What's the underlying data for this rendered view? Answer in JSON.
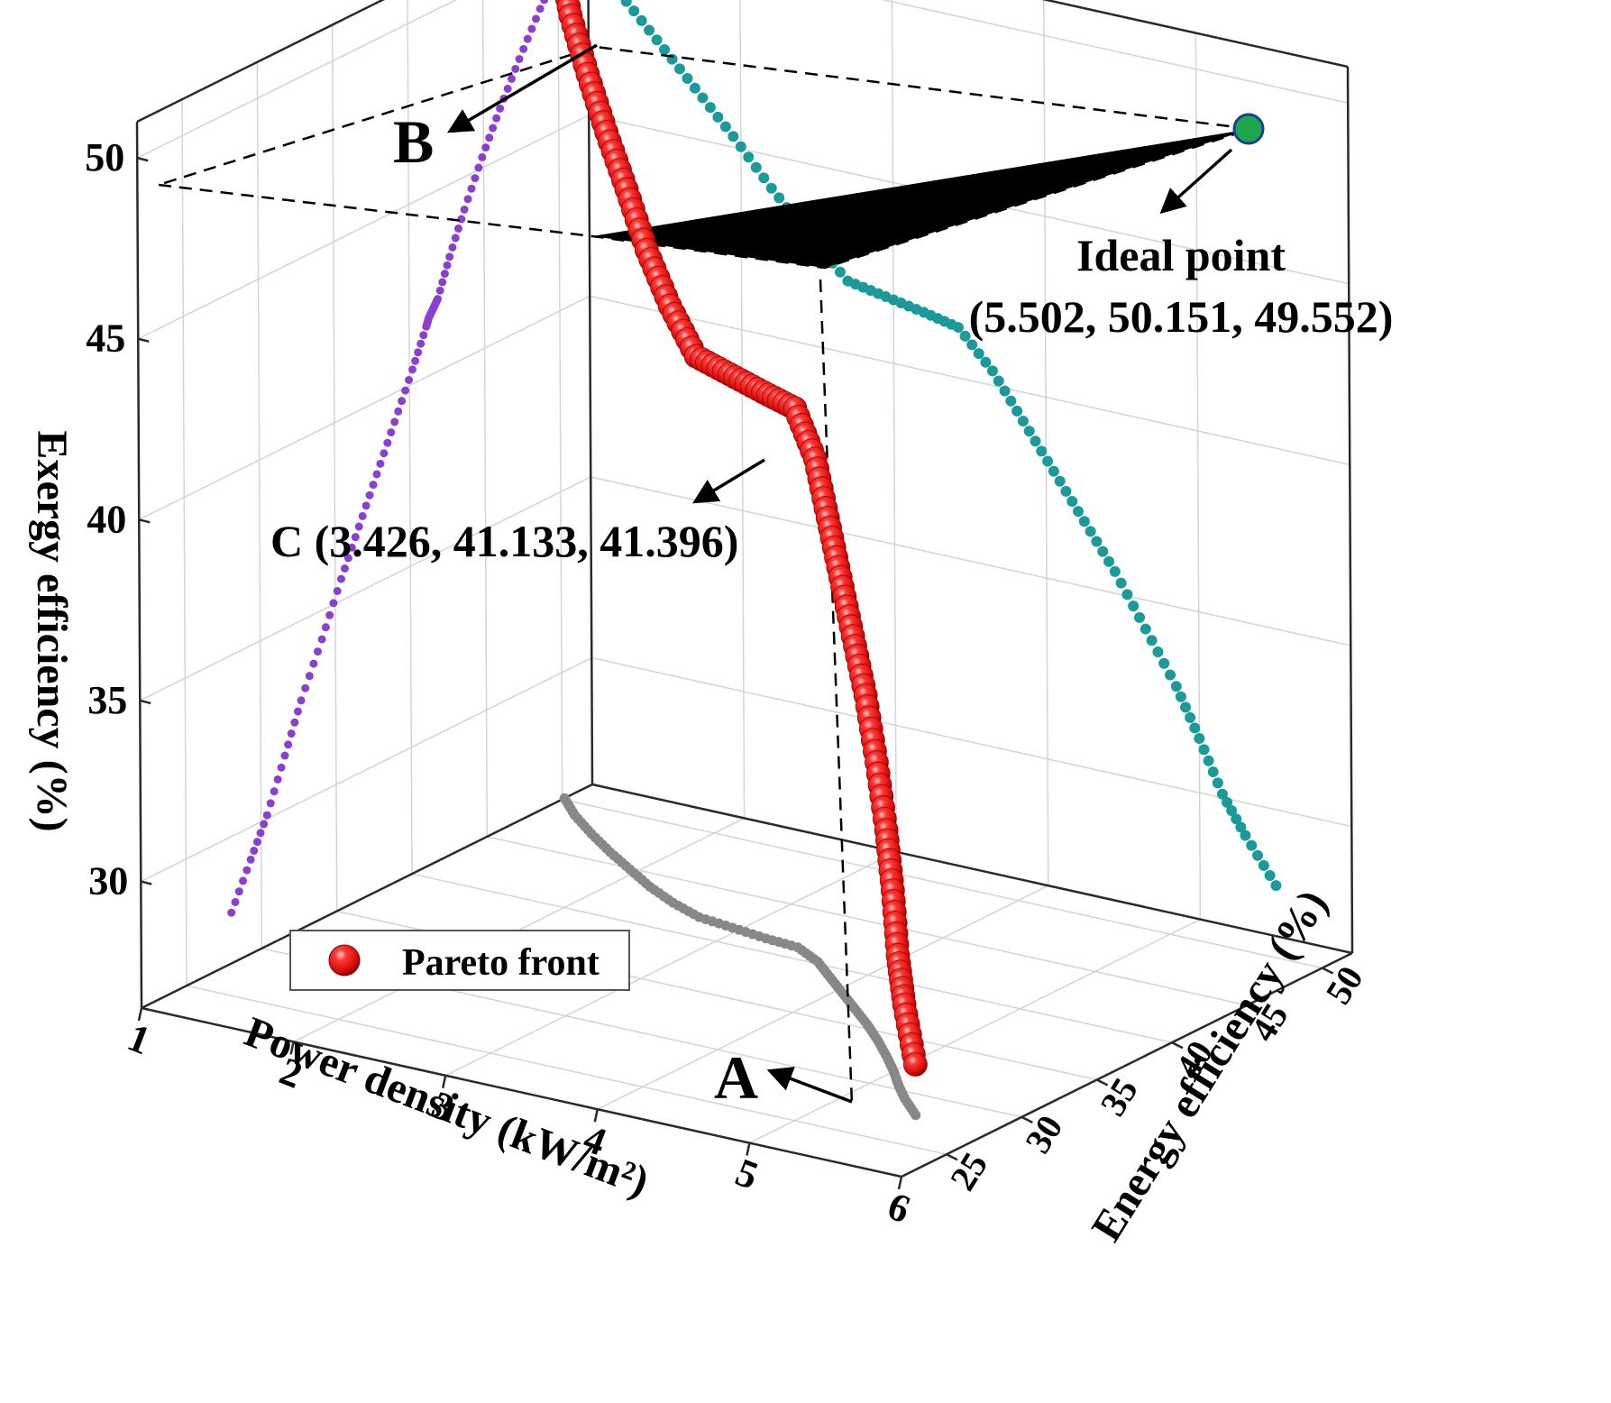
{
  "chart_data": {
    "type": "scatter",
    "title": "",
    "axes": {
      "x": {
        "label": "Power density (kW/m²)",
        "ticks": [
          "1",
          "2",
          "3",
          "4",
          "5",
          "6"
        ],
        "range": [
          1,
          6
        ]
      },
      "y": {
        "label": "Energy efficiency (%)",
        "ticks": [
          "25",
          "30",
          "35",
          "40",
          "45",
          "50"
        ],
        "range": [
          22,
          52
        ]
      },
      "z": {
        "label": "Exergy efficiency (%)",
        "ticks": [
          "30",
          "35",
          "40",
          "45",
          "50"
        ],
        "range": [
          26.5,
          51
        ]
      }
    },
    "grid": true,
    "legend": {
      "position": "bottom-left",
      "entries": [
        "Pareto front"
      ]
    },
    "series": [
      {
        "name": "Pareto front",
        "color": "#e8100e",
        "marker": "sphere",
        "points": [
          [
            1.0,
            50.15,
            49.55
          ],
          [
            1.2,
            48.8,
            48.6
          ],
          [
            1.45,
            47.4,
            47.5
          ],
          [
            1.7,
            46.1,
            46.4
          ],
          [
            1.95,
            44.9,
            45.3
          ],
          [
            2.2,
            43.7,
            44.1
          ],
          [
            2.45,
            42.7,
            43.0
          ],
          [
            2.7,
            41.9,
            42.0
          ],
          [
            2.95,
            41.6,
            41.8
          ],
          [
            3.2,
            41.3,
            41.6
          ],
          [
            3.426,
            41.133,
            41.396
          ],
          [
            3.65,
            40.2,
            40.4
          ],
          [
            3.85,
            39.0,
            39.2
          ],
          [
            4.05,
            37.8,
            38.0
          ],
          [
            4.25,
            36.6,
            36.8
          ],
          [
            4.45,
            35.4,
            35.6
          ],
          [
            4.65,
            34.1,
            34.2
          ],
          [
            4.85,
            32.7,
            32.8
          ],
          [
            5.0,
            31.6,
            31.5
          ],
          [
            5.15,
            30.4,
            30.1
          ],
          [
            5.3,
            29.3,
            29.1
          ],
          [
            5.5,
            28.0,
            27.9
          ]
        ]
      },
      {
        "name": "",
        "color": "#1a9a9a",
        "marker": "dot",
        "points": [
          [
            1.0,
            50.15,
            49.55
          ],
          [
            1.2,
            48.8,
            48.6
          ],
          [
            1.45,
            47.4,
            47.5
          ],
          [
            1.7,
            46.1,
            46.4
          ],
          [
            1.95,
            44.9,
            45.3
          ],
          [
            2.2,
            43.7,
            44.1
          ],
          [
            2.45,
            42.7,
            43.0
          ],
          [
            2.7,
            41.9,
            42.0
          ],
          [
            2.95,
            41.6,
            41.8
          ],
          [
            3.2,
            41.3,
            41.6
          ],
          [
            3.426,
            41.133,
            41.396
          ],
          [
            3.65,
            40.2,
            40.4
          ],
          [
            3.85,
            39.0,
            39.2
          ],
          [
            4.05,
            37.8,
            38.0
          ],
          [
            4.25,
            36.6,
            36.8
          ],
          [
            4.45,
            35.4,
            35.6
          ],
          [
            4.65,
            34.1,
            34.2
          ],
          [
            4.85,
            32.7,
            32.8
          ],
          [
            5.0,
            31.6,
            31.5
          ],
          [
            5.15,
            30.4,
            30.1
          ],
          [
            5.3,
            29.3,
            29.1
          ],
          [
            5.5,
            28.0,
            27.9
          ]
        ]
      },
      {
        "name": "",
        "color": "#8b3fd0",
        "marker": "dot",
        "points": [
          [
            1.0,
            50.15,
            49.55
          ],
          [
            1.2,
            48.8,
            48.6
          ],
          [
            1.45,
            47.4,
            47.5
          ],
          [
            1.7,
            46.1,
            46.4
          ],
          [
            1.95,
            44.9,
            45.3
          ],
          [
            2.2,
            43.7,
            44.1
          ],
          [
            2.45,
            42.7,
            43.0
          ],
          [
            2.7,
            41.9,
            42.0
          ],
          [
            2.95,
            41.6,
            41.8
          ],
          [
            3.2,
            41.3,
            41.6
          ],
          [
            3.426,
            41.133,
            41.396
          ],
          [
            3.65,
            40.2,
            40.4
          ],
          [
            3.85,
            39.0,
            39.2
          ],
          [
            4.05,
            37.8,
            38.0
          ],
          [
            4.25,
            36.6,
            36.8
          ],
          [
            4.45,
            35.4,
            35.6
          ],
          [
            4.65,
            34.1,
            34.2
          ],
          [
            4.85,
            32.7,
            32.8
          ],
          [
            5.0,
            31.6,
            31.5
          ],
          [
            5.15,
            30.4,
            30.1
          ],
          [
            5.3,
            29.3,
            29.1
          ],
          [
            5.5,
            28.0,
            27.9
          ]
        ]
      },
      {
        "name": "",
        "color": "#888888",
        "marker": "dot",
        "points": [
          [
            1.0,
            50.15,
            49.55
          ],
          [
            1.2,
            48.8,
            48.6
          ],
          [
            1.45,
            47.4,
            47.5
          ],
          [
            1.7,
            46.1,
            46.4
          ],
          [
            1.95,
            44.9,
            45.3
          ],
          [
            2.2,
            43.7,
            44.1
          ],
          [
            2.45,
            42.7,
            43.0
          ],
          [
            2.7,
            41.9,
            42.0
          ],
          [
            2.95,
            41.6,
            41.8
          ],
          [
            3.2,
            41.3,
            41.6
          ],
          [
            3.426,
            41.133,
            41.396
          ],
          [
            3.65,
            40.2,
            40.4
          ],
          [
            3.85,
            39.0,
            39.2
          ],
          [
            4.05,
            37.8,
            38.0
          ],
          [
            4.25,
            36.6,
            36.8
          ],
          [
            4.45,
            35.4,
            35.6
          ],
          [
            4.65,
            34.1,
            34.2
          ],
          [
            4.85,
            32.7,
            32.8
          ],
          [
            5.0,
            31.6,
            31.5
          ],
          [
            5.15,
            30.4,
            30.1
          ],
          [
            5.3,
            29.3,
            29.1
          ],
          [
            5.5,
            28.0,
            27.9
          ]
        ]
      }
    ],
    "ideal_point": {
      "values": [
        5.502,
        50.151,
        49.552
      ],
      "color": "#1fa64a"
    },
    "annotations": {
      "a": "A",
      "b": "B",
      "c": "C (3.426, 41.133, 41.396)",
      "ideal_title": "Ideal point",
      "ideal_coords": "(5.502, 50.151, 49.552)"
    }
  }
}
